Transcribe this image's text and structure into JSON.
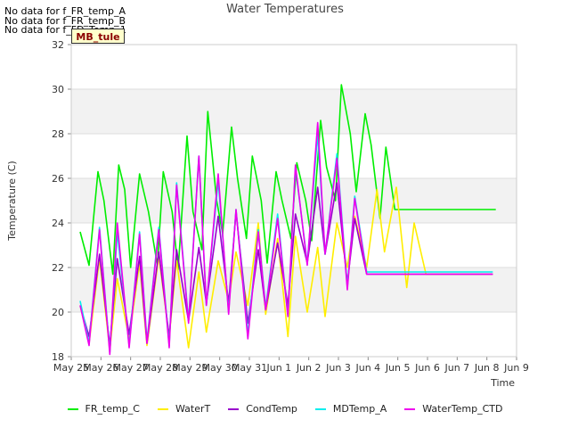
{
  "notes": [
    "No data for f_FR_temp_A",
    "No data for f_FR_temp_B",
    "No data for f_FD_Temp_1"
  ],
  "badge": "MB_tule",
  "colors": {
    "FR_temp_C": "#00ee00",
    "WaterT": "#ffee00",
    "CondTemp": "#9900cc",
    "MDTemp_A": "#00eeee",
    "WaterTemp_CTD": "#ee00ee"
  },
  "chart_data": {
    "type": "line",
    "title": "Water Temperatures",
    "xlabel": "Time",
    "ylabel": "Temperature (C)",
    "ylim": [
      18,
      32
    ],
    "yticks": [
      18,
      20,
      22,
      24,
      26,
      28,
      30,
      32
    ],
    "xlim": [
      0,
      15
    ],
    "xticks": [
      {
        "v": 0,
        "label": "May 25"
      },
      {
        "v": 1,
        "label": "May 26"
      },
      {
        "v": 2,
        "label": "May 27"
      },
      {
        "v": 3,
        "label": "May 28"
      },
      {
        "v": 4,
        "label": "May 29"
      },
      {
        "v": 5,
        "label": "May 30"
      },
      {
        "v": 6,
        "label": "May 31"
      },
      {
        "v": 7,
        "label": "Jun 1"
      },
      {
        "v": 8,
        "label": "Jun 2"
      },
      {
        "v": 9,
        "label": "Jun 3"
      },
      {
        "v": 10,
        "label": "Jun 4"
      },
      {
        "v": 11,
        "label": "Jun 5"
      },
      {
        "v": 12,
        "label": "Jun 6"
      },
      {
        "v": 13,
        "label": "Jun 7"
      },
      {
        "v": 14,
        "label": "Jun 8"
      },
      {
        "v": 15,
        "label": "Jun 9"
      }
    ],
    "grid": true,
    "legend_position": "bottom",
    "series": [
      {
        "name": "FR_temp_C",
        "x": [
          0.3,
          0.6,
          0.9,
          1.1,
          1.4,
          1.6,
          1.8,
          2.0,
          2.3,
          2.6,
          2.9,
          3.1,
          3.4,
          3.6,
          3.9,
          4.1,
          4.4,
          4.6,
          4.9,
          5.1,
          5.4,
          5.6,
          5.9,
          6.1,
          6.4,
          6.6,
          6.9,
          7.1,
          7.4,
          7.6,
          7.9,
          8.1,
          8.4,
          8.6,
          8.9,
          9.1,
          9.4,
          9.6,
          9.9,
          10.1,
          10.4,
          10.6,
          10.9,
          11.1,
          11.4,
          11.6,
          11.9,
          12.1,
          12.4,
          12.6,
          12.9,
          13.1,
          13.4,
          13.6,
          13.9,
          14.1,
          14.3
        ],
        "y": [
          23.6,
          22.1,
          26.3,
          25.0,
          21.7,
          26.6,
          25.5,
          22.0,
          26.2,
          24.5,
          22.1,
          26.3,
          24.5,
          21.9,
          27.9,
          24.5,
          22.8,
          29.0,
          25.0,
          23.5,
          28.3,
          26.0,
          23.3,
          27.0,
          25.0,
          22.2,
          26.3,
          25.0,
          23.3,
          26.7,
          25.0,
          23.2,
          28.6,
          26.5,
          25.0,
          30.2,
          28.0,
          25.4,
          28.9,
          27.5,
          24.2,
          27.4,
          24.6,
          24.6,
          24.6,
          24.6,
          24.6,
          24.6,
          24.6,
          24.6,
          24.6,
          24.6,
          24.6,
          24.6,
          24.6,
          24.6,
          24.6
        ]
      },
      {
        "name": "WaterT",
        "x": [
          0.3,
          0.6,
          0.95,
          1.3,
          1.55,
          1.95,
          2.3,
          2.55,
          2.95,
          3.3,
          3.55,
          3.95,
          4.3,
          4.55,
          4.95,
          5.3,
          5.55,
          5.95,
          6.3,
          6.55,
          6.95,
          7.3,
          7.55,
          7.95,
          8.3,
          8.55,
          8.95,
          9.3,
          9.55,
          9.95,
          10.3,
          10.55,
          10.95,
          11.3,
          11.55,
          11.95,
          12.3,
          12.55,
          12.95,
          13.3,
          13.55,
          13.95,
          14.2
        ],
        "y": [
          20.3,
          18.6,
          22.4,
          18.3,
          21.5,
          18.8,
          22.2,
          18.5,
          22.5,
          18.9,
          22.3,
          18.4,
          21.8,
          19.1,
          22.3,
          20.5,
          22.7,
          20.3,
          24.0,
          19.9,
          23.3,
          18.9,
          23.4,
          20.0,
          22.9,
          19.8,
          24.0,
          22.0,
          24.3,
          22.0,
          25.5,
          22.7,
          25.6,
          21.1,
          24.0,
          21.7,
          21.7,
          21.7,
          21.7,
          21.7,
          21.7,
          21.7,
          21.7
        ]
      },
      {
        "name": "CondTemp",
        "x": [
          0.3,
          0.6,
          0.95,
          1.3,
          1.55,
          1.95,
          2.3,
          2.55,
          2.95,
          3.3,
          3.55,
          3.95,
          4.3,
          4.55,
          4.95,
          5.3,
          5.55,
          5.95,
          6.3,
          6.55,
          6.95,
          7.3,
          7.55,
          7.95,
          8.3,
          8.55,
          8.95,
          9.3,
          9.55,
          9.95,
          10.3,
          10.55,
          10.95,
          11.3,
          11.55,
          11.95,
          12.3,
          12.55,
          12.95,
          13.3,
          13.55,
          13.95,
          14.2
        ],
        "y": [
          20.3,
          18.9,
          22.6,
          18.5,
          22.4,
          19.0,
          22.5,
          18.6,
          22.7,
          18.9,
          22.8,
          19.6,
          22.9,
          20.4,
          24.3,
          20.4,
          24.5,
          19.5,
          22.8,
          20.1,
          23.1,
          20.3,
          24.4,
          22.2,
          25.6,
          22.6,
          25.8,
          21.3,
          24.2,
          21.7,
          21.7,
          21.7,
          21.7,
          21.7,
          21.7,
          21.7,
          21.7,
          21.7,
          21.7,
          21.7,
          21.7,
          21.7,
          21.7
        ]
      },
      {
        "name": "MDTemp_A",
        "x": [
          0.3,
          0.6,
          0.95,
          1.3,
          1.55,
          1.95,
          2.3,
          2.55,
          2.95,
          3.3,
          3.55,
          3.95,
          4.3,
          4.55,
          4.95,
          5.3,
          5.55,
          5.95,
          6.3,
          6.55,
          6.95,
          7.3,
          7.55,
          7.95,
          8.3,
          8.55,
          8.95,
          9.3,
          9.55,
          9.95,
          10.3,
          10.55,
          10.95,
          11.3,
          11.55,
          11.95,
          12.3,
          12.55,
          12.95,
          13.3,
          13.55,
          13.95,
          14.2
        ],
        "y": [
          20.5,
          18.6,
          23.8,
          18.2,
          23.6,
          18.5,
          23.6,
          18.7,
          23.8,
          18.5,
          25.8,
          19.6,
          27.0,
          20.3,
          25.9,
          20.0,
          24.6,
          19.0,
          23.7,
          20.2,
          24.4,
          19.8,
          26.5,
          22.2,
          28.0,
          22.6,
          27.1,
          21.1,
          25.2,
          21.8,
          21.8,
          21.8,
          21.8,
          21.8,
          21.8,
          21.8,
          21.8,
          21.8,
          21.8,
          21.8,
          21.8,
          21.8,
          21.8
        ]
      },
      {
        "name": "WaterTemp_CTD",
        "x": [
          0.3,
          0.6,
          0.95,
          1.3,
          1.55,
          1.95,
          2.3,
          2.55,
          2.95,
          3.3,
          3.55,
          3.95,
          4.3,
          4.55,
          4.95,
          5.3,
          5.55,
          5.95,
          6.3,
          6.55,
          6.95,
          7.3,
          7.55,
          7.95,
          8.3,
          8.55,
          8.95,
          9.3,
          9.55,
          9.95,
          10.3,
          10.55,
          10.95,
          11.3,
          11.55,
          11.95,
          12.3,
          12.55,
          12.95,
          13.3,
          13.55,
          13.95,
          14.2
        ],
        "y": [
          20.3,
          18.5,
          23.7,
          18.1,
          24.0,
          18.4,
          23.5,
          18.6,
          23.7,
          18.4,
          25.7,
          19.5,
          27.0,
          20.3,
          26.2,
          19.9,
          24.6,
          18.8,
          23.6,
          20.1,
          24.2,
          19.8,
          26.6,
          22.1,
          28.5,
          22.6,
          26.9,
          21.0,
          25.1,
          21.7,
          21.7,
          21.7,
          21.7,
          21.7,
          21.7,
          21.7,
          21.7,
          21.7,
          21.7,
          21.7,
          21.7,
          21.7,
          21.7
        ]
      }
    ]
  }
}
